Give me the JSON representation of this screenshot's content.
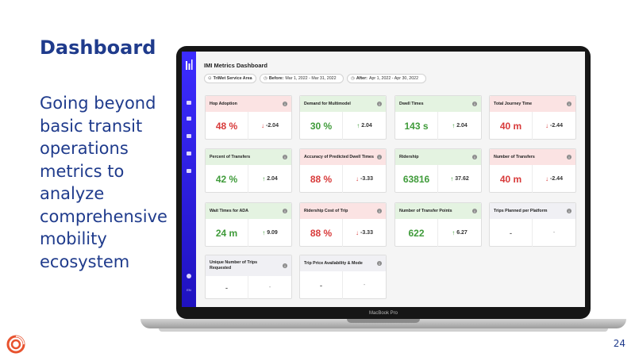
{
  "slide": {
    "title": "Dashboard",
    "body": "Going beyond basic transit operations metrics to analyze comprehensive mobility ecosystem",
    "page_number": "24"
  },
  "laptop": {
    "model_label": "MacBook Pro"
  },
  "app": {
    "title": "IMI Metrics Dashboard",
    "nav_lang": "EN",
    "filters": {
      "area": "TriMet Service Area",
      "before_label": "Before:",
      "before_value": "Mar 1, 2022 - Mar 31, 2022",
      "after_label": "After:",
      "after_value": "Apr 1, 2022 - Apr 30, 2022"
    },
    "cards": [
      {
        "title": "Hop Adoption",
        "value": "48 %",
        "change": "-2.04",
        "trend": "down",
        "tone": "red"
      },
      {
        "title": "Demand for Multimodel",
        "value": "30 %",
        "change": "2.04",
        "trend": "up",
        "tone": "green"
      },
      {
        "title": "Dwell Times",
        "value": "143 s",
        "change": "2.04",
        "trend": "up",
        "tone": "green"
      },
      {
        "title": "Total Journey Time",
        "value": "40 m",
        "change": "-2.44",
        "trend": "down",
        "tone": "red"
      },
      {
        "title": "Percent of Transfers",
        "value": "42 %",
        "change": "2.04",
        "trend": "up",
        "tone": "green"
      },
      {
        "title": "Accuracy of Predicted Dwell Times",
        "value": "88 %",
        "change": "-3.33",
        "trend": "down",
        "tone": "red"
      },
      {
        "title": "Ridership",
        "value": "63816",
        "change": "37.62",
        "trend": "up",
        "tone": "green"
      },
      {
        "title": "Number of Transfers",
        "value": "40 m",
        "change": "-2.44",
        "trend": "down",
        "tone": "red"
      },
      {
        "title": "Wait Times for ADA",
        "value": "24 m",
        "change": "9.09",
        "trend": "up",
        "tone": "green"
      },
      {
        "title": "Ridership Cost of Trip",
        "value": "88 %",
        "change": "-3.33",
        "trend": "down",
        "tone": "red"
      },
      {
        "title": "Number of Transfer Points",
        "value": "622",
        "change": "6.27",
        "trend": "up",
        "tone": "green"
      },
      {
        "title": "Trips Planned per Platform",
        "value": "-",
        "change": "-",
        "trend": "none",
        "tone": "gray"
      },
      {
        "title": "Unique Number of Trips Requested",
        "value": "-",
        "change": "-",
        "trend": "none",
        "tone": "gray"
      },
      {
        "title": "Trip Price Availability & Mode",
        "value": "-",
        "change": "-",
        "trend": "none",
        "tone": "gray"
      }
    ]
  },
  "colors": {
    "slide_text": "#1f3b8c",
    "sidebar": "#3c2cff",
    "positive": "#3f9b3a",
    "negative": "#d83a3a",
    "brand_logo": "#e8532f"
  },
  "icons": {
    "brand": "spiral-logo-icon",
    "info": "info-icon",
    "trend_up": "arrow-up-icon",
    "trend_down": "arrow-down-icon",
    "location": "location-pin-icon",
    "calendar": "clock-icon"
  }
}
